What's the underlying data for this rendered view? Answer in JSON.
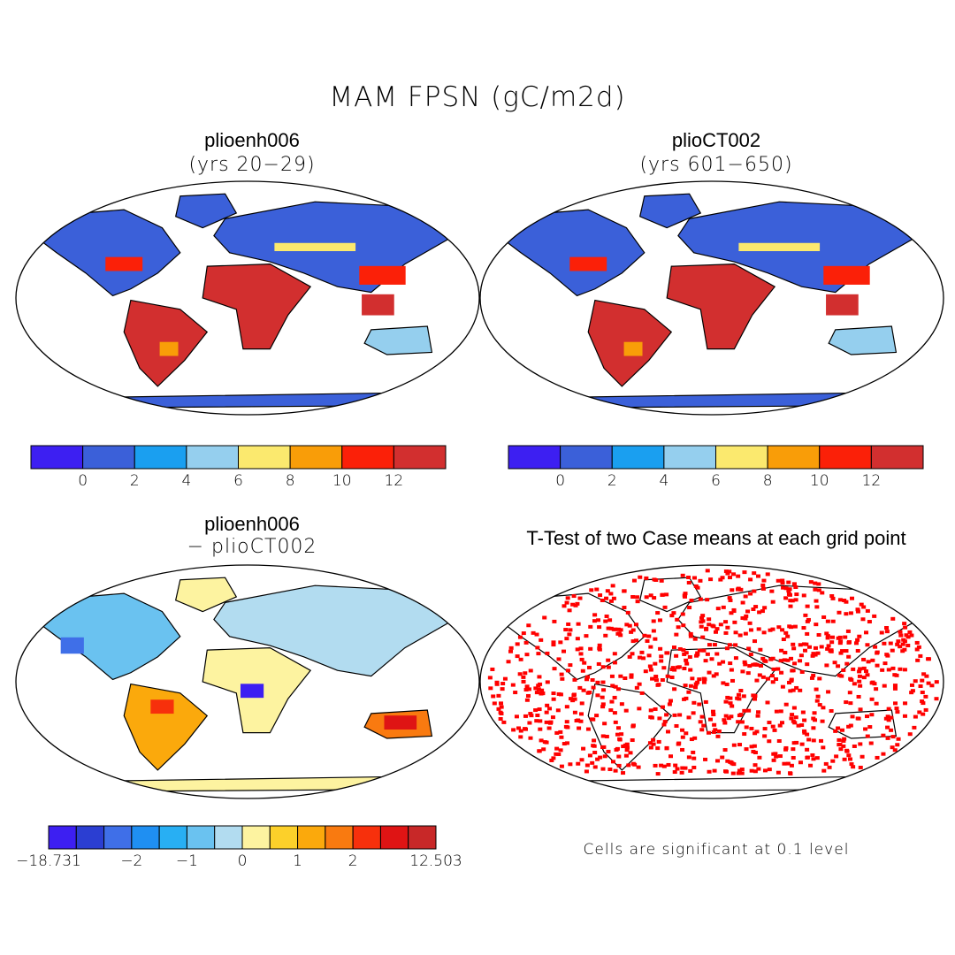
{
  "figure": {
    "title": "MAM FPSN (gC/m2d)"
  },
  "panels": [
    {
      "id": "p1",
      "title": "plioenh006",
      "subtitle": "(yrs 20−29)",
      "kind": "field"
    },
    {
      "id": "p2",
      "title": "plioCT002",
      "subtitle": "(yrs 601−650)",
      "kind": "field"
    },
    {
      "id": "p3",
      "title": "plioenh006",
      "subtitle": "− plioCT002",
      "kind": "difference"
    },
    {
      "id": "p4",
      "title": "T-Test of two Case means at each grid point",
      "subtitle": "",
      "kind": "significance"
    }
  ],
  "colorbars": {
    "field": {
      "colors": [
        "#3d1ff2",
        "#3b60d9",
        "#1a9ff0",
        "#95cfee",
        "#fbe96e",
        "#f99d08",
        "#fb2008",
        "#d22f2f"
      ],
      "labels": [
        "0",
        "2",
        "4",
        "6",
        "8",
        "10",
        "12"
      ]
    },
    "difference": {
      "colors": [
        "#3d1ff2",
        "#2b3ed2",
        "#3f6fe8",
        "#1f8ff2",
        "#28aff3",
        "#6ac2f0",
        "#b2dcf0",
        "#fdf3a0",
        "#fcd02a",
        "#fba90c",
        "#f97a10",
        "#f7300c",
        "#df1414",
        "#c82828"
      ],
      "labels": [
        "−18.731",
        "−2",
        "−1",
        "0",
        "1",
        "2",
        "12.503"
      ]
    }
  },
  "significance_note": "Cells are significant at 0.1 level",
  "colors": {
    "significant": "#ff0000",
    "coastline": "#000000"
  }
}
